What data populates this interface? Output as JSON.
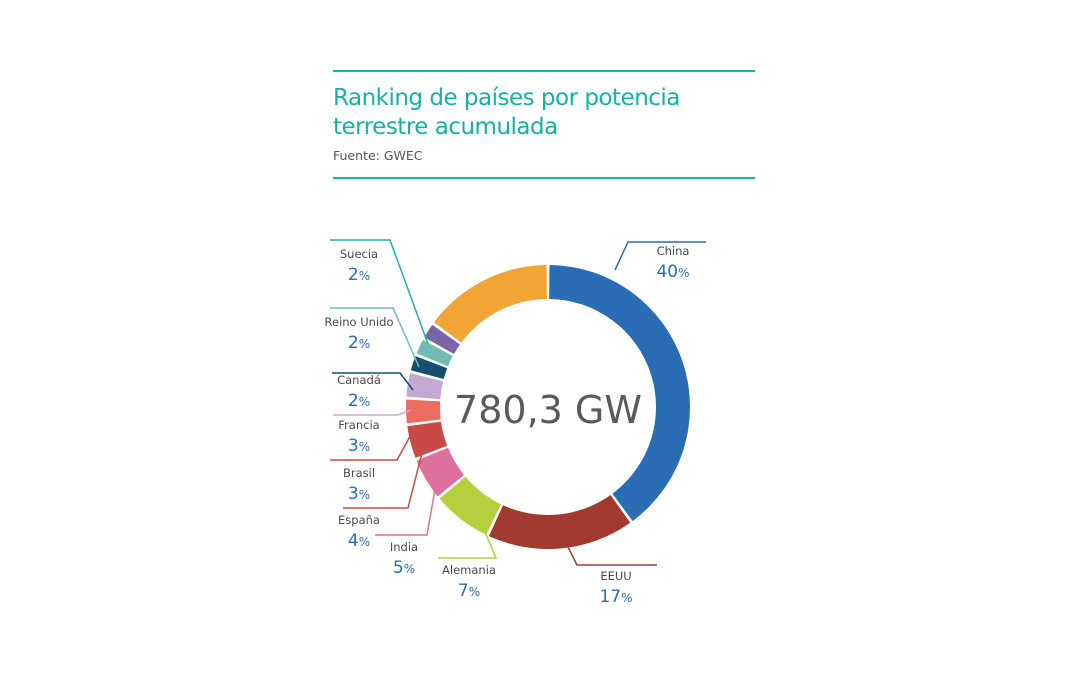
{
  "header": {
    "title_line1": "Ranking de países por potencia",
    "title_line2": "terrestre acumulada",
    "source": "Fuente: GWEC"
  },
  "center_label": "780,3 GW",
  "chart_data": {
    "type": "pie",
    "title": "Ranking de países por potencia terrestre acumulada",
    "total_label": "780,3 GW",
    "categories": [
      "China",
      "EEUU",
      "Alemania",
      "India",
      "España",
      "Brasil",
      "Francia",
      "Canadá",
      "Reino Unido",
      "Suecia",
      ""
    ],
    "values": [
      40,
      17,
      7,
      5,
      4,
      3,
      3,
      2,
      2,
      2,
      15
    ],
    "value_labels": [
      "40",
      "17",
      "7",
      "5",
      "4",
      "3",
      "3",
      "2",
      "2",
      "2",
      ""
    ],
    "unit": "%",
    "colors": [
      "#2a6db5",
      "#a33a2f",
      "#b6cf3f",
      "#df6f9c",
      "#c84a47",
      "#ec6d5f",
      "#c4a8d4",
      "#13506f",
      "#70bdb6",
      "#7b64a8",
      "#f0a535"
    ],
    "leader_colors": [
      "#2a6db5",
      "#a33a2f",
      "#b6cf3f",
      "#df6f9c",
      "#c84a47",
      "#c84a47",
      "#c4a8d4",
      "#13506f",
      "#70bdb6",
      "#1bb3a8",
      ""
    ]
  }
}
